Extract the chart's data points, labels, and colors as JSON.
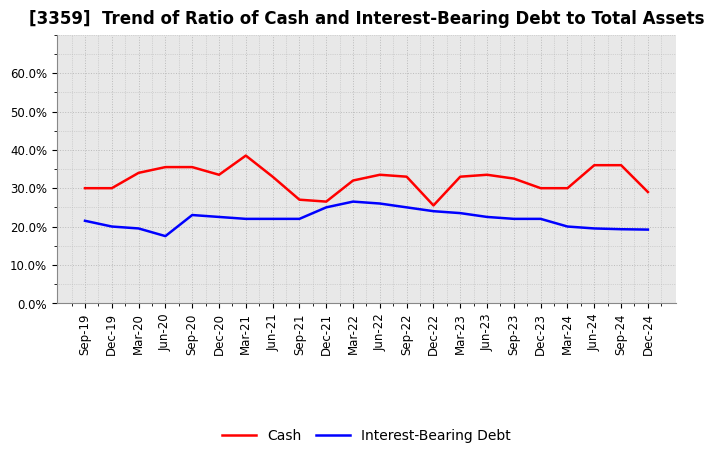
{
  "title": "[3359]  Trend of Ratio of Cash and Interest-Bearing Debt to Total Assets",
  "x_labels": [
    "Sep-19",
    "Dec-19",
    "Mar-20",
    "Jun-20",
    "Sep-20",
    "Dec-20",
    "Mar-21",
    "Jun-21",
    "Sep-21",
    "Dec-21",
    "Mar-22",
    "Jun-22",
    "Sep-22",
    "Dec-22",
    "Mar-23",
    "Jun-23",
    "Sep-23",
    "Dec-23",
    "Mar-24",
    "Jun-24",
    "Sep-24",
    "Dec-24"
  ],
  "cash": [
    0.3,
    0.3,
    0.34,
    0.355,
    0.355,
    0.335,
    0.385,
    0.33,
    0.27,
    0.265,
    0.32,
    0.335,
    0.33,
    0.255,
    0.33,
    0.335,
    0.325,
    0.3,
    0.3,
    0.36,
    0.36,
    0.29
  ],
  "interest_bearing_debt": [
    0.215,
    0.2,
    0.195,
    0.175,
    0.23,
    0.225,
    0.22,
    0.22,
    0.22,
    0.25,
    0.265,
    0.26,
    0.25,
    0.24,
    0.235,
    0.225,
    0.22,
    0.22,
    0.2,
    0.195,
    0.193,
    0.192
  ],
  "cash_color": "#ff0000",
  "debt_color": "#0000ff",
  "background_color": "#ffffff",
  "plot_bg_color": "#e8e8e8",
  "grid_color": "#bbbbbb",
  "ylim": [
    0.0,
    0.7
  ],
  "yticks": [
    0.0,
    0.1,
    0.2,
    0.3,
    0.4,
    0.5,
    0.6
  ],
  "ytick_labels": [
    "0.0%",
    "10.0%",
    "20.0%",
    "30.0%",
    "40.0%",
    "50.0%",
    "60.0%"
  ],
  "legend_cash": "Cash",
  "legend_debt": "Interest-Bearing Debt",
  "title_fontsize": 12,
  "tick_fontsize": 8.5,
  "legend_fontsize": 10,
  "line_width": 1.8
}
